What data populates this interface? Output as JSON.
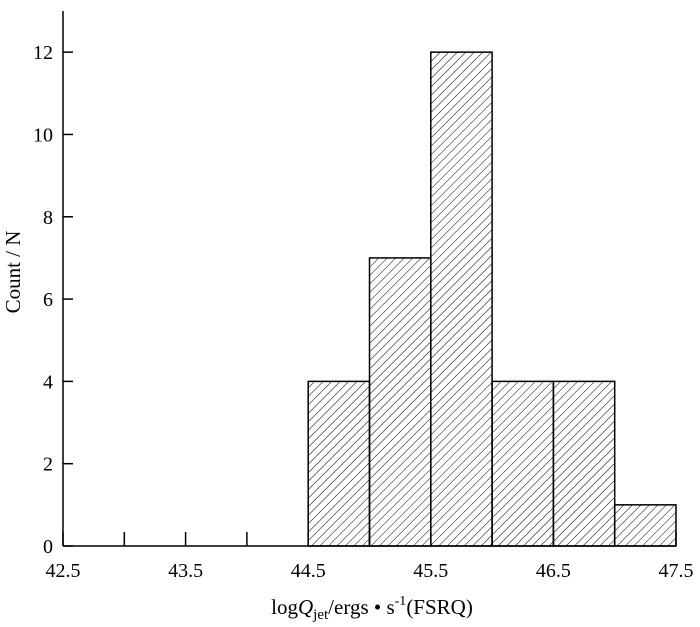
{
  "chart_data": {
    "type": "bar",
    "style": "histogram",
    "bar_fill": "diagonal-hatch",
    "bar_color": "#000000",
    "background": "#ffffff",
    "bins": [
      {
        "x0": 44.5,
        "x1": 45.0,
        "count": 4
      },
      {
        "x0": 45.0,
        "x1": 45.5,
        "count": 7
      },
      {
        "x0": 45.5,
        "x1": 46.0,
        "count": 12
      },
      {
        "x0": 46.0,
        "x1": 46.5,
        "count": 4
      },
      {
        "x0": 46.5,
        "x1": 47.0,
        "count": 4
      },
      {
        "x0": 47.0,
        "x1": 47.5,
        "count": 1
      }
    ],
    "xlim": [
      42.5,
      47.5
    ],
    "ylim": [
      0,
      13
    ],
    "xticks": [
      42.5,
      43.5,
      44.5,
      45.5,
      46.5,
      47.5
    ],
    "xtick_labels": [
      "42.5",
      "43.5",
      "44.5",
      "45.5",
      "46.5",
      "47.5"
    ],
    "x_minor_ticks": [
      43.0,
      44.0,
      45.0,
      46.0,
      47.0
    ],
    "yticks": [
      0,
      2,
      4,
      6,
      8,
      10,
      12
    ],
    "ytick_labels": [
      "0",
      "2",
      "4",
      "6",
      "8",
      "10",
      "12"
    ],
    "ylabel": "Count / N",
    "xlabel": {
      "prefix": "log",
      "symbol": "Q",
      "subscript": "jet",
      "middle": "/ergs • s",
      "superscript": "-1",
      "suffix": "(FSRQ)"
    },
    "grid": false,
    "legend": false
  }
}
